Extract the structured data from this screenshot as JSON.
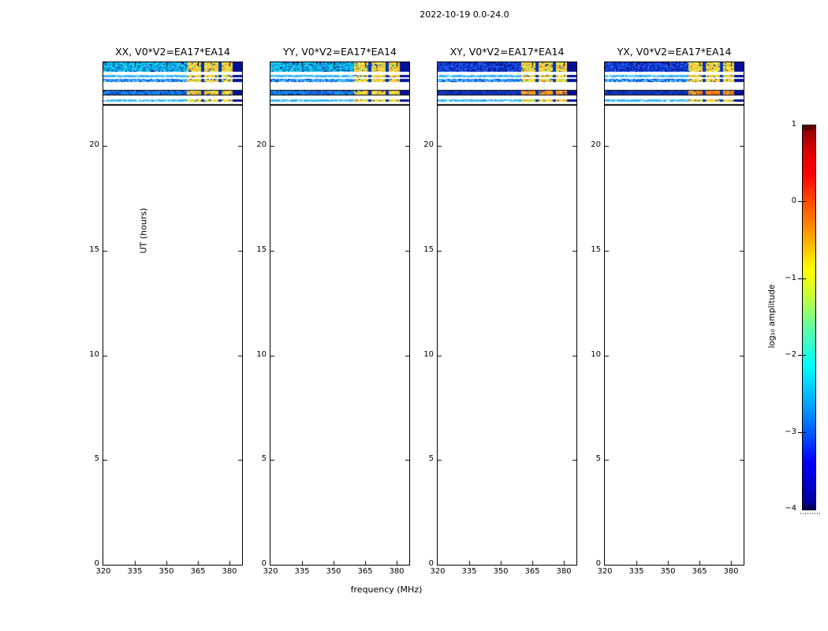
{
  "figure_title": "2022-10-19 0.0-24.0",
  "chart_data": {
    "type": "heatmap",
    "title": "2022-10-19 0.0-24.0",
    "xlabel": "frequency (MHz)",
    "ylabel": "UT (hours)",
    "xlim": [
      320,
      386
    ],
    "ylim": [
      0,
      24
    ],
    "xticks": [
      320,
      335,
      350,
      365,
      380
    ],
    "xtick_labels": [
      "320",
      "335",
      "350",
      "365",
      "380"
    ],
    "yticks": [
      0,
      5,
      10,
      15,
      20
    ],
    "ytick_labels": [
      "0",
      "5",
      "10",
      "15",
      "20"
    ],
    "panels": [
      {
        "title": "XX, V0*V2=EA17*EA14",
        "tone": "bright"
      },
      {
        "title": "YY, V0*V2=EA17*EA14",
        "tone": "bright"
      },
      {
        "title": "XY, V0*V2=EA17*EA14",
        "tone": "dark"
      },
      {
        "title": "YX, V0*V2=EA17*EA14",
        "tone": "dark"
      }
    ],
    "stripes": [
      {
        "ut": [
          23.56,
          24.0
        ],
        "kind": "thick",
        "border": false
      },
      {
        "ut": [
          23.29,
          23.41
        ],
        "kind": "thin",
        "border": false
      },
      {
        "ut": [
          23.06,
          23.21
        ],
        "kind": "thin2",
        "border": false
      },
      {
        "ut": [
          22.4,
          22.69
        ],
        "kind": "thickD",
        "border": true
      },
      {
        "ut": [
          22.1,
          22.22
        ],
        "kind": "thin",
        "border": false
      },
      {
        "ut": [
          21.91,
          22.01
        ],
        "kind": "thinDark",
        "border": true
      }
    ],
    "hot_region": {
      "start_mhz": 359.5,
      "gaps_mhz": [
        [
          365.8,
          367.3
        ],
        [
          374.3,
          375.8
        ]
      ],
      "tail_mhz": [
        381.5,
        386
      ]
    },
    "palette": {
      "bright_base": [
        "#0099ee",
        "#00bbdd",
        "#22ccee",
        "#0077dd",
        "#00ddcc",
        "#44ccff"
      ],
      "dark_base": [
        "#0033cc",
        "#1144dd",
        "#2255ee",
        "#0022aa",
        "#3366ff"
      ],
      "thin_light": [
        "#55ccff",
        "#33bbff",
        "#66ddee",
        "#44aaff",
        "#2299ee"
      ],
      "thickD_bright": [
        "#1a5ae0",
        "#2266e8",
        "#1150d8",
        "#3377ee",
        "#00aaee",
        "#11aadd"
      ],
      "thickD_dark": [
        "#0c2fb0",
        "#1138c0",
        "#0a28a0",
        "#2248d0",
        "#1133bb"
      ],
      "thin_dark": [
        "#001090",
        "#0033cc",
        "#1144dd",
        "#000a80"
      ],
      "navy": "#000f8a",
      "hot": [
        "#ffe544",
        "#ffcc33",
        "#ff9922",
        "#ccee44",
        "#99dd55",
        "#ffb833",
        "#ffee66"
      ],
      "hot_strong": [
        "#ff9922",
        "#ff7711",
        "#ffcc33",
        "#ee6600",
        "#ffaa33"
      ],
      "gap_blue": "#0033bb",
      "tail_navy": "#001099"
    },
    "colorbar": {
      "label": "log₁₀ amplitude",
      "colormap": "jet",
      "ticks": [
        1,
        0,
        -1,
        -2,
        -3,
        -4
      ],
      "tick_labels": [
        "1",
        "0",
        "−1",
        "−2",
        "−3",
        "−4"
      ],
      "vmin": -4,
      "vmax": 1
    }
  }
}
